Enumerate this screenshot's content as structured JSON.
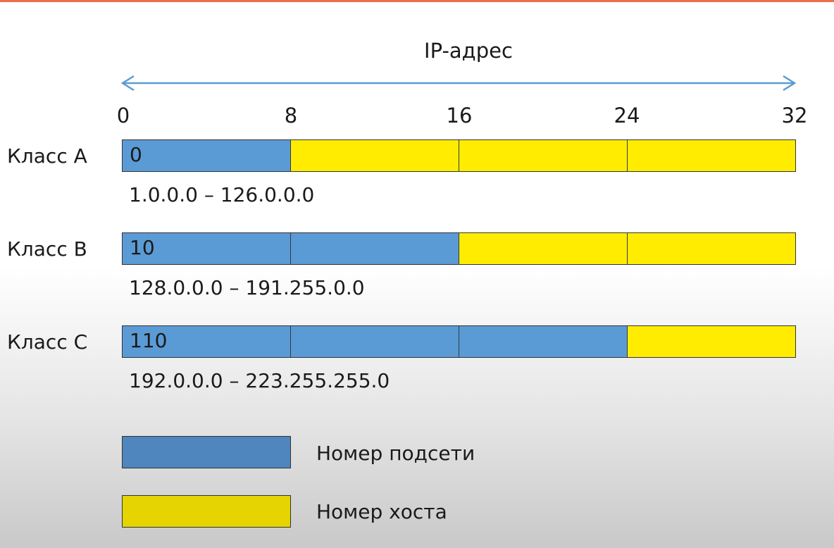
{
  "title": "IP-адрес",
  "bit_ticks": [
    "0",
    "8",
    "16",
    "24",
    "32"
  ],
  "colors": {
    "network": "#5b9bd5",
    "host": "#ffec00",
    "accent_rule": "#e8704a",
    "arrow": "#5b9bd5"
  },
  "classes": [
    {
      "label": "Класс A",
      "prefix": "0",
      "network_octets": 1,
      "host_octets": 3,
      "range": "1.0.0.0 – 126.0.0.0"
    },
    {
      "label": "Класс B",
      "prefix": "10",
      "network_octets": 2,
      "host_octets": 2,
      "range": "128.0.0.0 – 191.255.0.0"
    },
    {
      "label": "Класс C",
      "prefix": "110",
      "network_octets": 3,
      "host_octets": 1,
      "range": "192.0.0.0 – 223.255.255.0"
    }
  ],
  "legend": {
    "network_label": "Номер подсети",
    "host_label": "Номер хоста"
  }
}
